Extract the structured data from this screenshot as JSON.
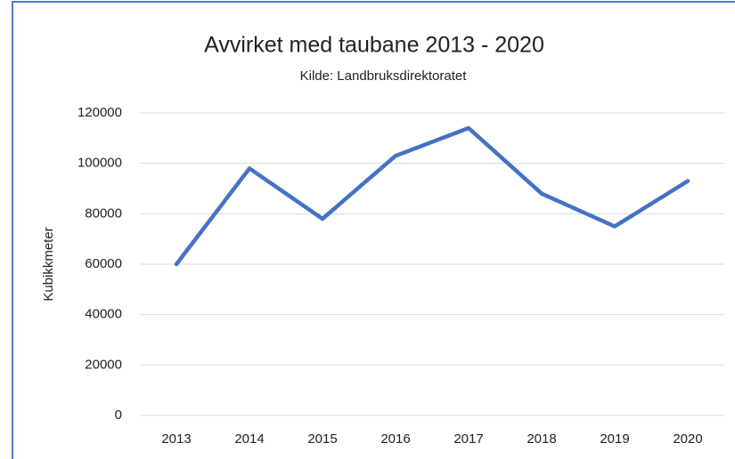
{
  "chart_data": {
    "type": "line",
    "title": "Avvirket med taubane 2013 - 2020",
    "subtitle": "Kilde: Landbruksdirektoratet",
    "y_label": "Kubikkmeter",
    "categories": [
      "2013",
      "2014",
      "2015",
      "2016",
      "2017",
      "2018",
      "2019",
      "2020"
    ],
    "series": [
      {
        "name": "Kubikkmeter",
        "color": "#4472c4",
        "values": [
          60000,
          98000,
          78000,
          103000,
          114000,
          88000,
          75000,
          93000
        ]
      }
    ],
    "ylim": [
      0,
      120000
    ],
    "yticks": [
      0,
      20000,
      40000,
      60000,
      80000,
      100000,
      120000
    ],
    "grid": true
  }
}
